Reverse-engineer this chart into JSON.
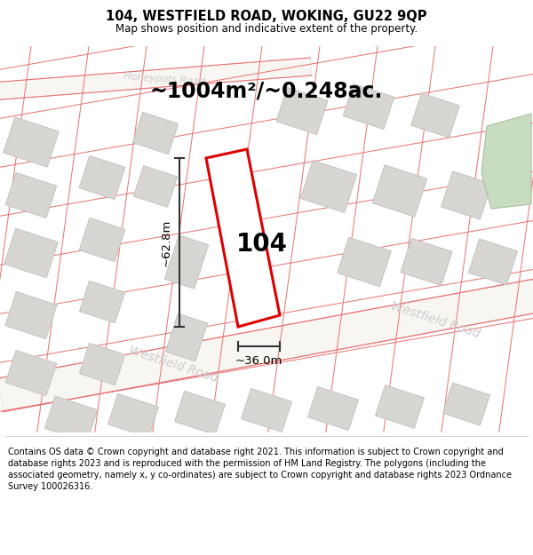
{
  "title": "104, WESTFIELD ROAD, WOKING, GU22 9QP",
  "subtitle": "Map shows position and indicative extent of the property.",
  "area_label": "~1004m²/~0.248ac.",
  "property_number": "104",
  "dim_width": "~36.0m",
  "dim_height": "~62.8m",
  "footer_text_line1": "Contains OS data © Crown copyright and database right 2021. This information is subject to Crown copyright and database rights 2023 and is reproduced with the permission of",
  "footer_text_line2": "HM Land Registry. The polygons (including the associated geometry, namely x, y co-ordinates) are subject to Crown copyright and database rights 2023 Ordnance Survey",
  "footer_text_line3": "100026316.",
  "map_bg": "#f0eeeb",
  "plot_outline_color": "#dd0000",
  "road_line_color": "#e87070",
  "building_fill_color": "#d8d6d2",
  "building_edge_color": "#c8c6c2",
  "road_fill_color": "#e8e4e0",
  "dim_line_color": "#333333",
  "road_label_color": "#cccccc",
  "green_fill": "#c8dcc0",
  "green_edge": "#a8c0a0"
}
